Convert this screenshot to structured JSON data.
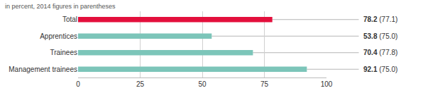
{
  "chart_data": {
    "type": "bar",
    "orientation": "horizontal",
    "subtitle": "in percent, 2014 figures in parentheses",
    "categories": [
      "Total",
      "Apprentices",
      "Trainees",
      "Management trainees"
    ],
    "values": [
      78.2,
      53.8,
      70.4,
      92.1
    ],
    "prior_values": [
      77.1,
      75.0,
      77.8,
      75.0
    ],
    "prior_value_labels": [
      "(77.1)",
      "(75.0)",
      "(77.8)",
      "(75.0)"
    ],
    "colors": [
      "#e30f3c",
      "#7cc5b9",
      "#7cc5b9",
      "#7cc5b9"
    ],
    "xlim": [
      0,
      100
    ],
    "xticks": [
      0,
      25,
      50,
      75,
      100
    ],
    "grid": true,
    "data_labels": true
  }
}
